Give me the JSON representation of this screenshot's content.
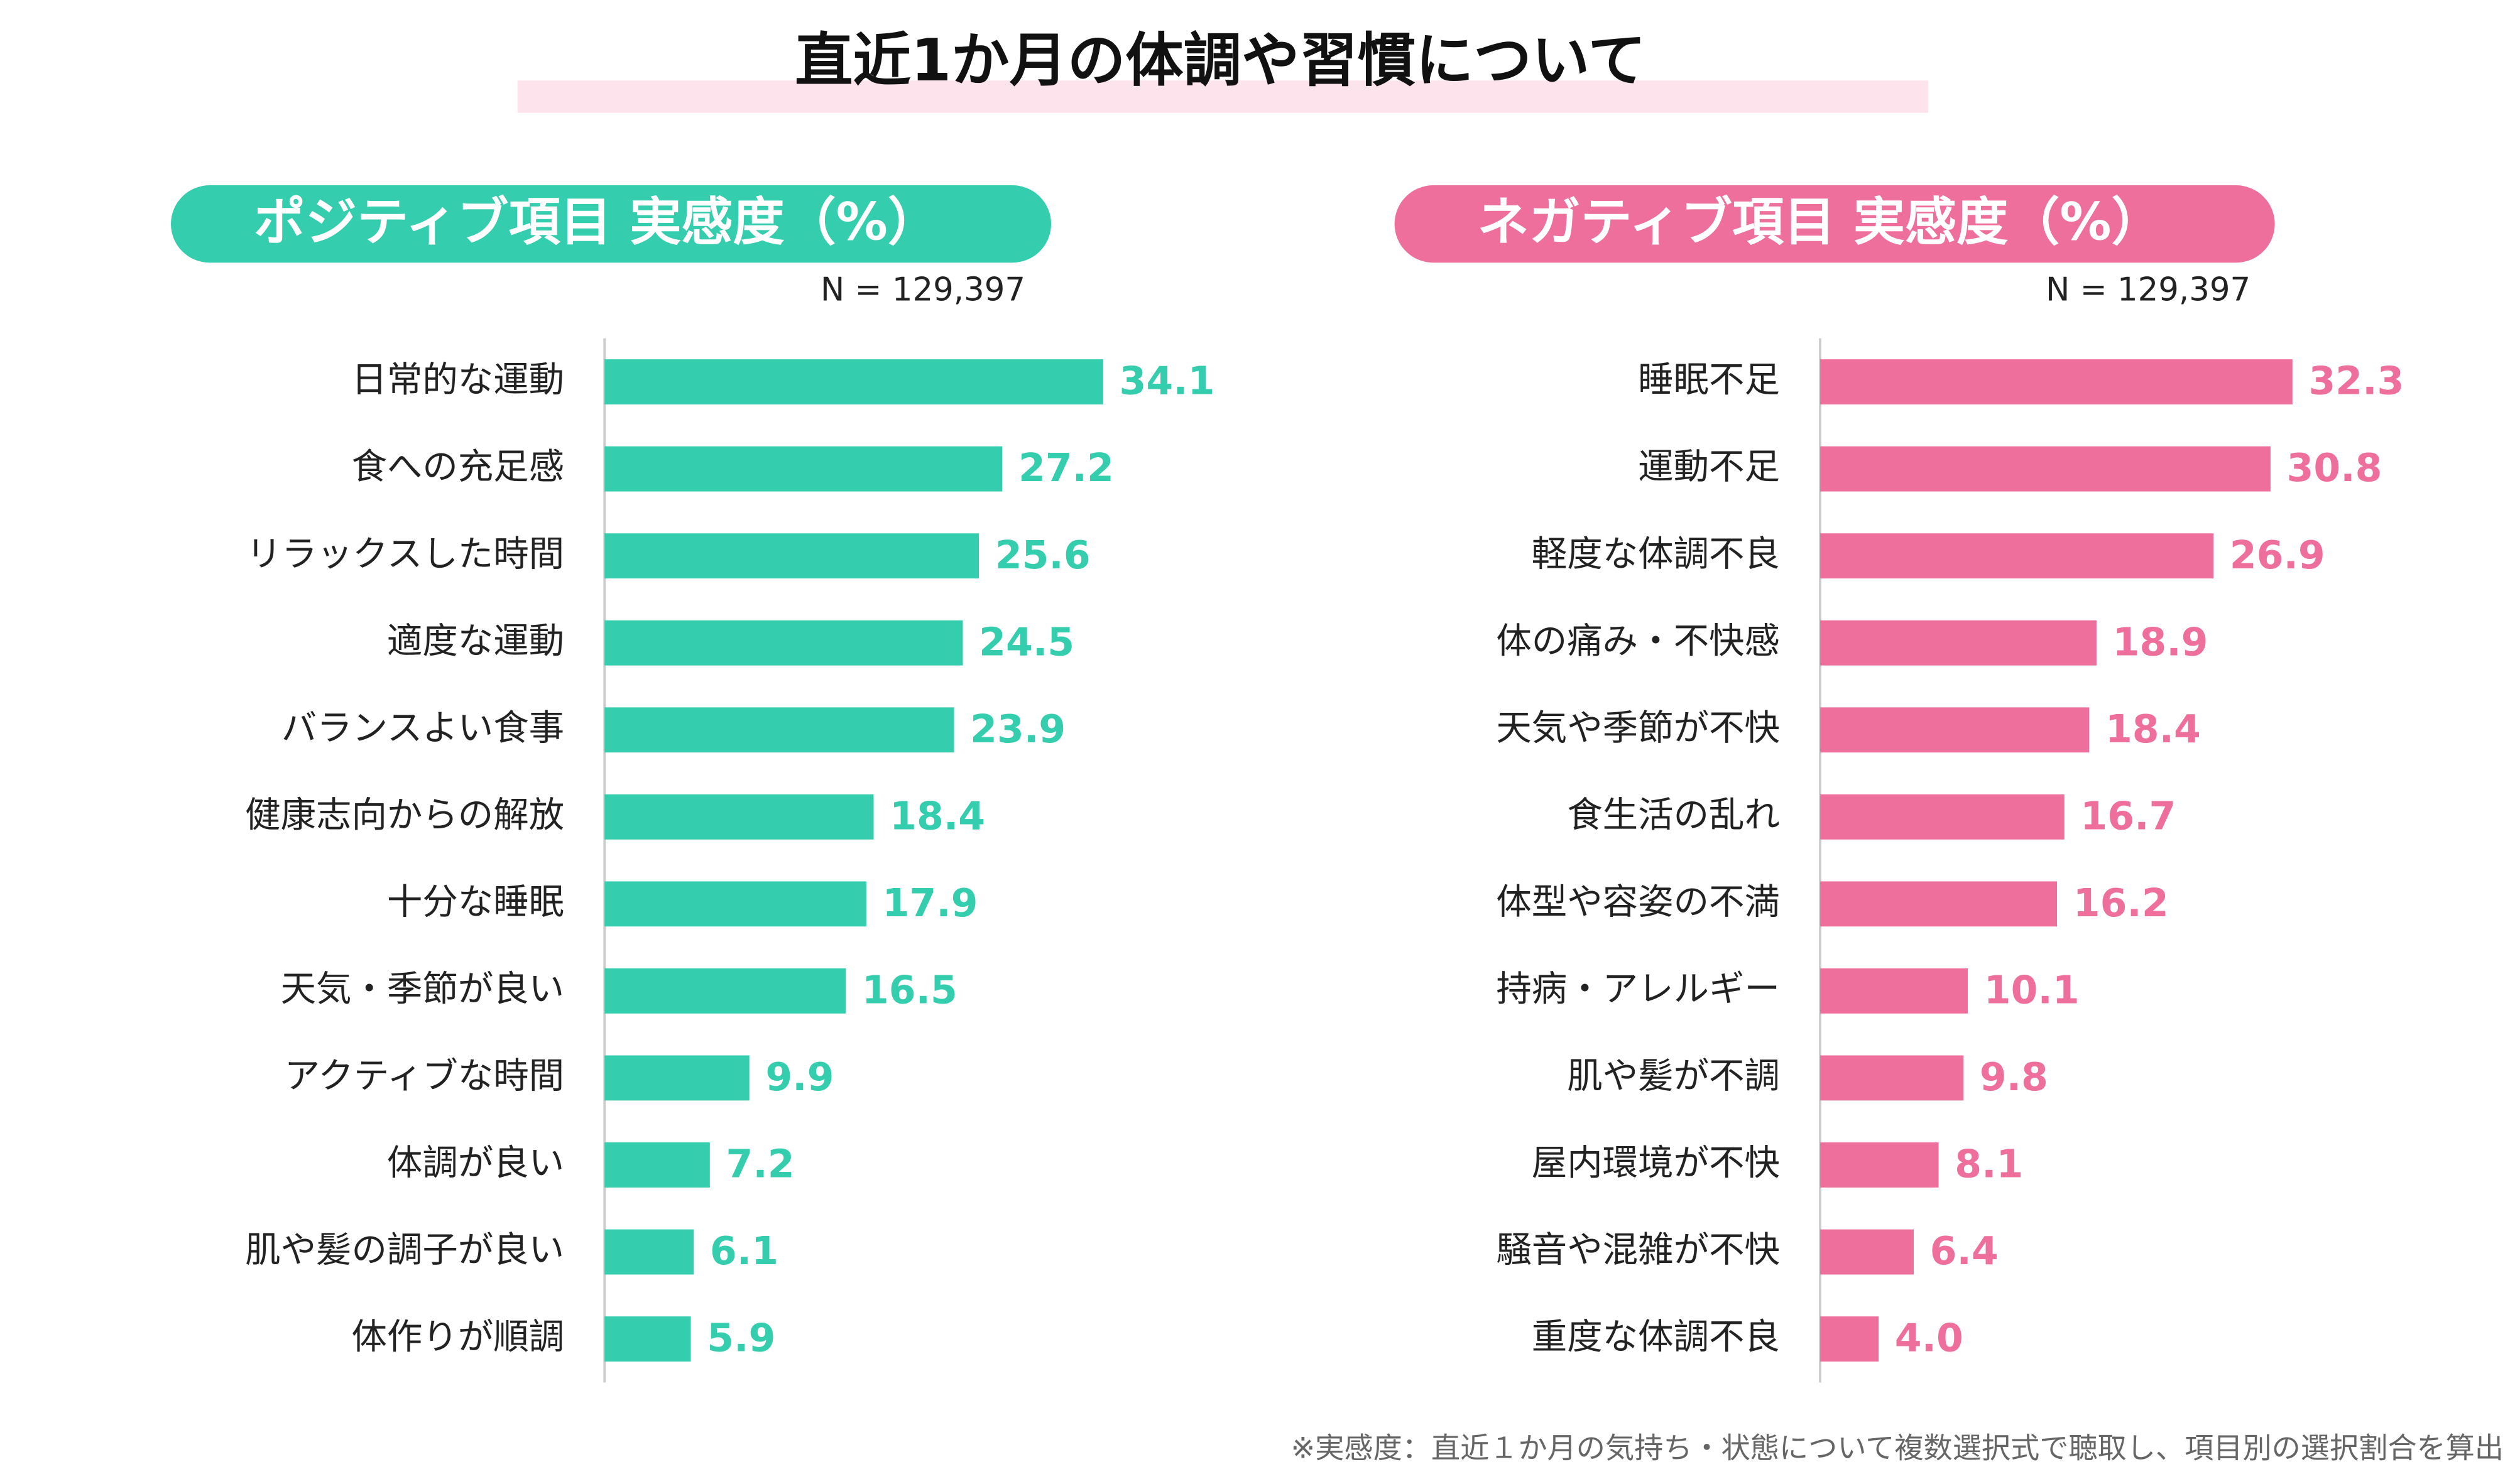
{
  "title": "直近1か月の体調や習慣について",
  "footnote": "※実感度：直近１か月の気持ち・状態について複数選択式で聴取し、項目別の選択割合を算出",
  "chart_data": [
    {
      "type": "bar",
      "title": "ポジティブ項目 実感度（%）",
      "note": "N = 129,397",
      "color": "#34cdad",
      "categories": [
        "日常的な運動",
        "食への充足感",
        "リラックスした時間",
        "適度な運動",
        "バランスよい食事",
        "健康志向からの解放",
        "十分な睡眠",
        "天気・季節が良い",
        "アクティブな時間",
        "体調が良い",
        "肌や髪の調子が良い",
        "体作りが順調"
      ],
      "values": [
        34.1,
        27.2,
        25.6,
        24.5,
        23.9,
        18.4,
        17.9,
        16.5,
        9.9,
        7.2,
        6.1,
        5.9
      ]
    },
    {
      "type": "bar",
      "title": "ネガティブ項目 実感度（%）",
      "note": "N = 129,397",
      "color": "#ee6f9b",
      "categories": [
        "睡眠不足",
        "運動不足",
        "軽度な体調不良",
        "体の痛み・不快感",
        "天気や季節が不快",
        "食生活の乱れ",
        "体型や容姿の不満",
        "持病・アレルギー",
        "肌や髪が不調",
        "屋内環境が不快",
        "騒音や混雑が不快",
        "重度な体調不良"
      ],
      "values": [
        32.3,
        30.8,
        26.9,
        18.9,
        18.4,
        16.7,
        16.2,
        10.1,
        9.8,
        8.1,
        6.4,
        4.0
      ],
      "value_labels": [
        "32.3",
        "30.8",
        "26.9",
        "18.9",
        "18.4",
        "16.7",
        "16.2",
        "10.1",
        "9.8",
        "8.1",
        "6.4",
        "4.0"
      ]
    }
  ]
}
